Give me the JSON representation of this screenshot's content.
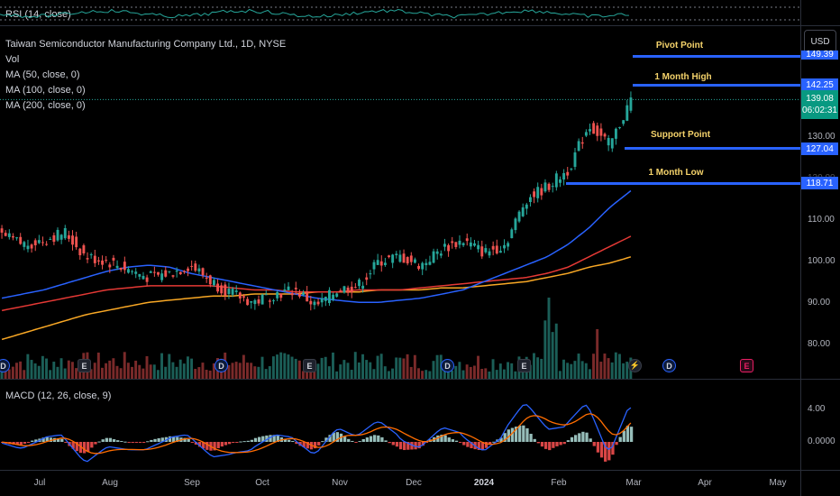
{
  "header": {
    "symbol_title": "Taiwan Semiconductor Manufacturing Company Ltd., 1D, NYSE",
    "indicators": [
      "Vol",
      "MA (50, close, 0)",
      "MA (100, close, 0)",
      "MA (200, close, 0)"
    ]
  },
  "rsi": {
    "label": "RSI (14, close)"
  },
  "macd": {
    "label": "MACD (12, 26, close, 9)",
    "ticks": [
      "4.00",
      "0.0000"
    ]
  },
  "currency": "USD",
  "price_axis": {
    "ticks": [
      "130.00",
      "120.00",
      "110.00",
      "100.00",
      "90.00",
      "80.00"
    ]
  },
  "levels": [
    {
      "name": "Pivot Point",
      "value": "149.39"
    },
    {
      "name": "1 Month High",
      "value": "142.25"
    },
    {
      "name": "Support Point",
      "value": "127.04"
    },
    {
      "name": "1 Month Low",
      "value": "118.71"
    }
  ],
  "current_price": {
    "value": "139.08",
    "countdown": "06:02:31"
  },
  "time_axis": [
    "Jul",
    "Aug",
    "Sep",
    "Oct",
    "Nov",
    "Dec",
    "2024",
    "Feb",
    "Mar",
    "Apr",
    "May"
  ],
  "events": [
    {
      "type": "D"
    },
    {
      "type": "E"
    },
    {
      "type": "D"
    },
    {
      "type": "E"
    },
    {
      "type": "D"
    },
    {
      "type": "E"
    },
    {
      "type": "D"
    },
    {
      "type": "E"
    },
    {
      "type": "D"
    },
    {
      "type": "E"
    }
  ],
  "colors": {
    "up": "#26a69a",
    "down": "#ef5350",
    "ma50": "#2962ff",
    "ma100": "#e53935",
    "ma200": "#f9a825",
    "level": "#2962ff",
    "annotation": "#f5d36b"
  },
  "chart_data": {
    "type": "candlestick",
    "y_range": [
      75,
      152
    ],
    "series": [
      {
        "name": "MA (50, close, 0)",
        "values": [
          91,
          92,
          93,
          94.5,
          96,
          97.5,
          98.5,
          99,
          98.5,
          97,
          96,
          95,
          94,
          93,
          92,
          91,
          90.5,
          90,
          90,
          90.5,
          91,
          92,
          93,
          95,
          97,
          99,
          101,
          104,
          108,
          113,
          117
        ]
      },
      {
        "name": "MA (100, close, 0)",
        "values": [
          88,
          89,
          90,
          91,
          92,
          93,
          93.5,
          94,
          94,
          94,
          94,
          93.5,
          93,
          93,
          92.5,
          92.5,
          92.5,
          93,
          93,
          93,
          93.5,
          94,
          94.5,
          95,
          95.5,
          96,
          97,
          98.5,
          101,
          103.5,
          106
        ]
      },
      {
        "name": "MA (200, close, 0)",
        "values": [
          81,
          82.5,
          84,
          85.5,
          87,
          88,
          89,
          90,
          90.5,
          91,
          91.5,
          91.5,
          92,
          92,
          92,
          92.5,
          92.5,
          92.5,
          93,
          93,
          93,
          93.5,
          93.5,
          94,
          94.5,
          95,
          96,
          97,
          98.5,
          99.5,
          101
        ]
      },
      {
        "name": "Close",
        "values": [
          106,
          104,
          105,
          107,
          101,
          100,
          98,
          96,
          97,
          99,
          95,
          92,
          90,
          92,
          93,
          89,
          93,
          94,
          100,
          101,
          99,
          103,
          105,
          102,
          104,
          115,
          118,
          122,
          133,
          128,
          139.08
        ]
      }
    ]
  }
}
